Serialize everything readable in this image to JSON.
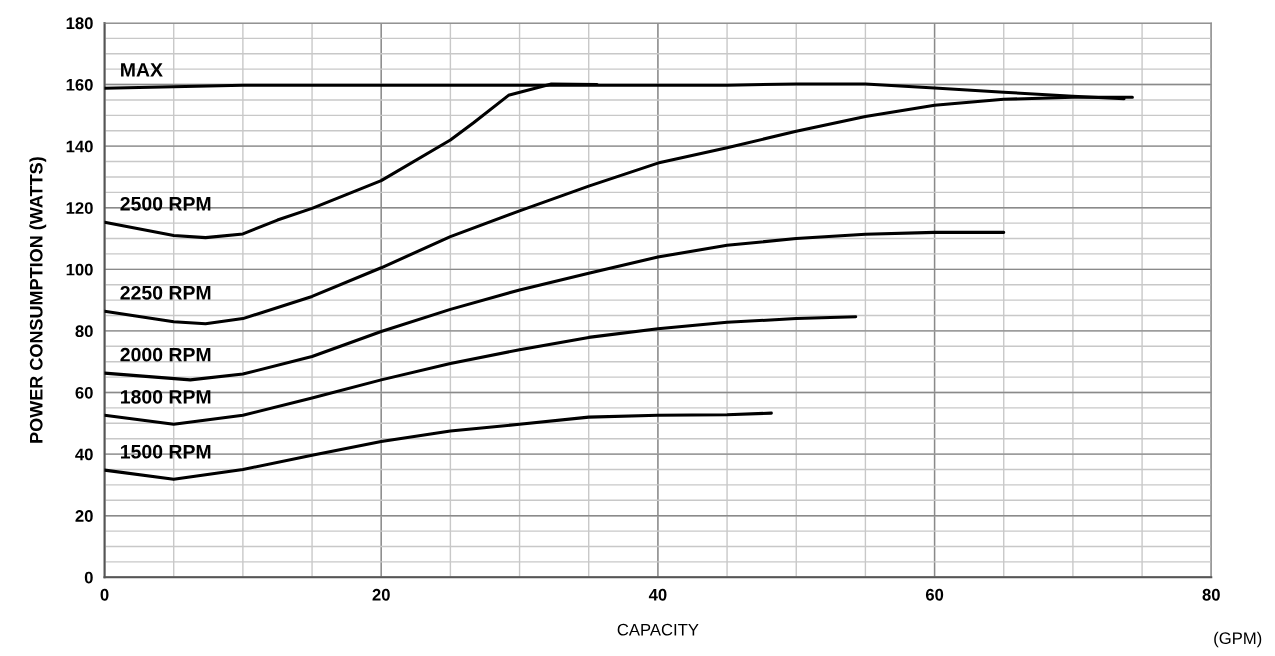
{
  "chart_data": {
    "type": "line",
    "xlabel": "CAPACITY",
    "ylabel": "POWER CONSUMPTION (WATTS)",
    "annotations": [
      "(GPM)"
    ],
    "xlim": [
      0,
      80
    ],
    "ylim": [
      0,
      180
    ],
    "xticks": [
      0,
      20,
      40,
      60,
      80
    ],
    "yticks": [
      0,
      20,
      40,
      60,
      80,
      100,
      120,
      140,
      160,
      180
    ],
    "grid": true,
    "legend": false,
    "marker": "none",
    "line_style": "solid",
    "series": [
      {
        "name": "MAX",
        "color": "#000000",
        "x": [
          0,
          10,
          20,
          30,
          40,
          45,
          50,
          55,
          60,
          65,
          70,
          73.7
        ],
        "values": [
          158.8,
          159.8,
          159.8,
          159.8,
          159.8,
          159.8,
          160.2,
          160.2,
          158.9,
          157.5,
          156.2,
          155.4
        ]
      },
      {
        "name": "2500 RPM",
        "color": "#000000",
        "x": [
          0,
          5,
          7.3,
          10,
          12.5,
          15,
          20,
          25,
          26.7,
          29.2,
          32.3,
          35.6
        ],
        "values": [
          115.3,
          111.0,
          110.3,
          111.5,
          116,
          119.8,
          128.8,
          142.0,
          147.7,
          156.5,
          160.2,
          160
        ]
      },
      {
        "name": "2250 RPM",
        "color": "#000000",
        "x": [
          0,
          5,
          7.3,
          10,
          15,
          20,
          25,
          30,
          35,
          40,
          45,
          50,
          55,
          60,
          65,
          70,
          74.3
        ],
        "values": [
          86.4,
          83,
          82.3,
          84,
          91.2,
          100.5,
          110.6,
          119.0,
          127.0,
          134.5,
          139.5,
          144.8,
          149.6,
          153.3,
          155.2,
          155.9,
          155.9
        ]
      },
      {
        "name": "2000 RPM",
        "color": "#000000",
        "x": [
          0,
          6.2,
          10,
          15,
          20,
          25,
          30,
          35,
          40,
          45,
          50,
          55,
          60,
          65
        ],
        "values": [
          66.3,
          64.1,
          66,
          71.7,
          79.8,
          87,
          93.3,
          98.7,
          104,
          107.8,
          110,
          111.4,
          112,
          112
        ]
      },
      {
        "name": "1800 RPM",
        "color": "#000000",
        "x": [
          0,
          5,
          10,
          15,
          20,
          25,
          30,
          35,
          40,
          45,
          50,
          54.3
        ],
        "values": [
          52.6,
          49.7,
          52.6,
          58.2,
          64.1,
          69.4,
          73.9,
          77.9,
          80.7,
          82.8,
          84,
          84.6
        ]
      },
      {
        "name": "1500 RPM",
        "color": "#000000",
        "x": [
          0,
          5,
          10,
          15,
          20,
          25,
          30,
          35,
          40,
          45,
          48.2
        ],
        "values": [
          34.8,
          31.8,
          35,
          39.6,
          44.1,
          47.5,
          49.7,
          52,
          52.6,
          52.8,
          53.3
        ]
      }
    ]
  }
}
